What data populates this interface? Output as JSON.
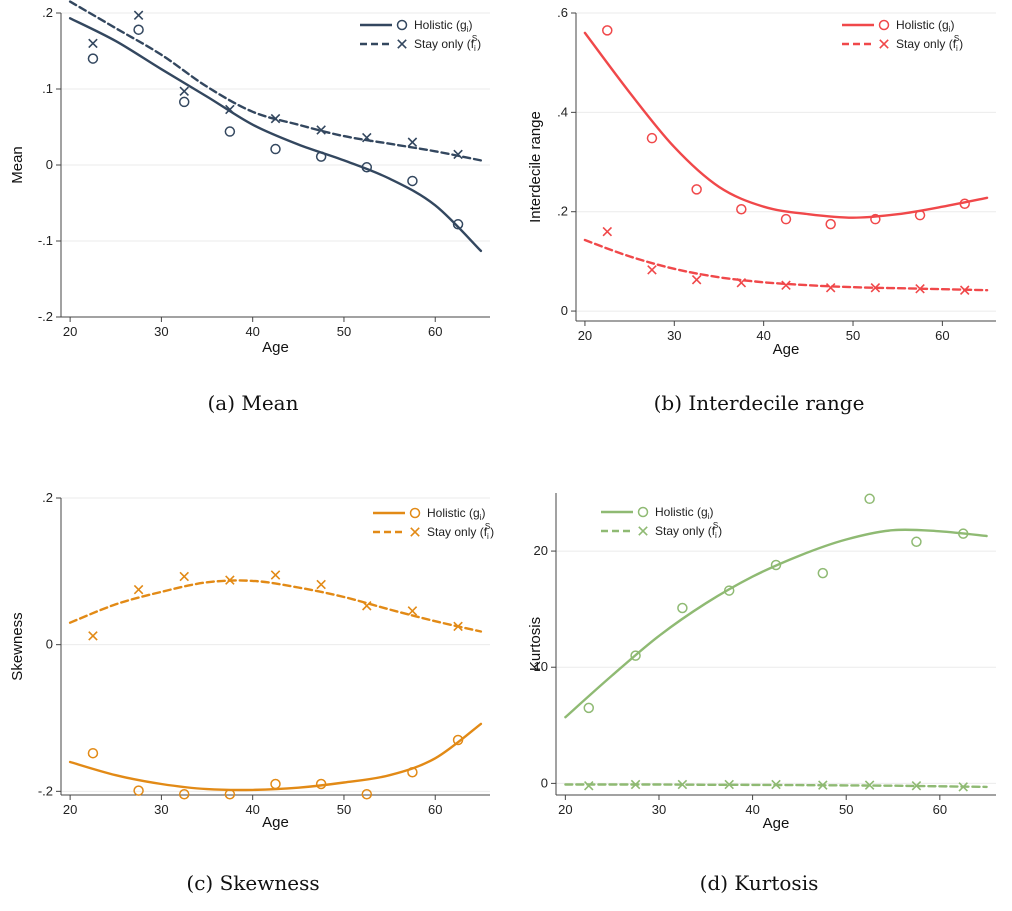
{
  "chart_data": [
    {
      "type": "line",
      "caption": "(a) Mean",
      "xlabel": "Age",
      "ylabel": "Mean",
      "xlim": [
        19,
        66
      ],
      "ylim": [
        -0.2,
        0.2
      ],
      "xticks": [
        20,
        30,
        40,
        50,
        60
      ],
      "yticks": [
        -0.2,
        -0.1,
        0,
        0.1,
        0.2
      ],
      "ytick_labels": [
        "-.2",
        "-.1",
        "0",
        ".1",
        ".2"
      ],
      "grid": true,
      "legend_position": "top-right",
      "color": "#33475f",
      "series": [
        {
          "name": "Holistic",
          "legend_main": "Holistic (g",
          "legend_sub": "i",
          "legend_sup": "",
          "legend_end": ")",
          "style": "solid",
          "marker": "circle",
          "points_x": [
            22.5,
            27.5,
            32.5,
            37.5,
            42.5,
            47.5,
            52.5,
            57.5,
            62.5
          ],
          "points_y": [
            0.14,
            0.178,
            0.083,
            0.044,
            0.021,
            0.011,
            -0.003,
            -0.021,
            -0.078
          ],
          "fit_x": [
            20,
            25,
            30,
            35,
            40,
            45,
            50,
            55,
            60,
            65
          ],
          "fit_y": [
            0.193,
            0.163,
            0.126,
            0.09,
            0.053,
            0.027,
            0.006,
            -0.018,
            -0.053,
            -0.113
          ]
        },
        {
          "name": "Stay only",
          "legend_main": "Stay only (f",
          "legend_sub": "i",
          "legend_sup": "S",
          "legend_end": ")",
          "style": "dashed",
          "marker": "x",
          "points_x": [
            22.5,
            27.5,
            32.5,
            37.5,
            42.5,
            47.5,
            52.5,
            57.5,
            62.5
          ],
          "points_y": [
            0.16,
            0.197,
            0.097,
            0.073,
            0.061,
            0.046,
            0.036,
            0.03,
            0.014
          ],
          "fit_x": [
            20,
            25,
            30,
            35,
            40,
            45,
            50,
            55,
            60,
            65
          ],
          "fit_y": [
            0.215,
            0.18,
            0.145,
            0.103,
            0.07,
            0.053,
            0.038,
            0.028,
            0.018,
            0.006
          ]
        }
      ]
    },
    {
      "type": "line",
      "caption": "(b) Interdecile range",
      "xlabel": "Age",
      "ylabel": "Interdecile range",
      "xlim": [
        19,
        66
      ],
      "ylim": [
        -0.02,
        0.6
      ],
      "xticks": [
        20,
        30,
        40,
        50,
        60
      ],
      "yticks": [
        0,
        0.2,
        0.4,
        0.6
      ],
      "ytick_labels": [
        "0",
        ".2",
        ".4",
        ".6"
      ],
      "grid": true,
      "legend_position": "top-right",
      "color": "#f0484a",
      "series": [
        {
          "name": "Holistic",
          "legend_main": "Holistic (g",
          "legend_sub": "i",
          "legend_sup": "",
          "legend_end": ")",
          "style": "solid",
          "marker": "circle",
          "points_x": [
            22.5,
            27.5,
            32.5,
            37.5,
            42.5,
            47.5,
            52.5,
            57.5,
            62.5
          ],
          "points_y": [
            0.565,
            0.348,
            0.245,
            0.205,
            0.185,
            0.175,
            0.185,
            0.193,
            0.216
          ],
          "fit_x": [
            20,
            25,
            30,
            35,
            40,
            45,
            50,
            55,
            60,
            65
          ],
          "fit_y": [
            0.56,
            0.44,
            0.33,
            0.25,
            0.21,
            0.195,
            0.188,
            0.195,
            0.21,
            0.228
          ]
        },
        {
          "name": "Stay only",
          "legend_main": "Stay only (f",
          "legend_sub": "i",
          "legend_sup": "S",
          "legend_end": ")",
          "style": "dashed",
          "marker": "x",
          "points_x": [
            22.5,
            27.5,
            32.5,
            37.5,
            42.5,
            47.5,
            52.5,
            57.5,
            62.5
          ],
          "points_y": [
            0.16,
            0.083,
            0.063,
            0.057,
            0.052,
            0.047,
            0.047,
            0.045,
            0.042
          ],
          "fit_x": [
            20,
            25,
            30,
            35,
            40,
            45,
            50,
            55,
            60,
            65
          ],
          "fit_y": [
            0.143,
            0.11,
            0.085,
            0.068,
            0.058,
            0.052,
            0.048,
            0.046,
            0.044,
            0.042
          ]
        }
      ]
    },
    {
      "type": "line",
      "caption": "(c) Skewness",
      "xlabel": "Age",
      "ylabel": "Skewness",
      "xlim": [
        19,
        66
      ],
      "ylim": [
        -0.205,
        0.2
      ],
      "xticks": [
        20,
        30,
        40,
        50,
        60
      ],
      "yticks": [
        -0.2,
        0,
        0.2
      ],
      "ytick_labels": [
        "-.2",
        "0",
        ".2"
      ],
      "grid": true,
      "legend_position": "top-right",
      "color": "#e28a16",
      "series": [
        {
          "name": "Holistic",
          "legend_main": "Holistic (g",
          "legend_sub": "i",
          "legend_sup": "",
          "legend_end": ")",
          "style": "solid",
          "marker": "circle",
          "points_x": [
            22.5,
            27.5,
            32.5,
            37.5,
            42.5,
            47.5,
            52.5,
            57.5,
            62.5
          ],
          "points_y": [
            -0.148,
            -0.199,
            -0.204,
            -0.204,
            -0.19,
            -0.19,
            -0.204,
            -0.174,
            -0.13
          ],
          "fit_x": [
            20,
            25,
            30,
            35,
            40,
            45,
            50,
            55,
            60,
            65
          ],
          "fit_y": [
            -0.16,
            -0.178,
            -0.19,
            -0.197,
            -0.198,
            -0.195,
            -0.188,
            -0.178,
            -0.155,
            -0.108
          ]
        },
        {
          "name": "Stay only",
          "legend_main": "Stay only (f",
          "legend_sub": "i",
          "legend_sup": "S",
          "legend_end": ")",
          "style": "dashed",
          "marker": "x",
          "points_x": [
            22.5,
            27.5,
            32.5,
            37.5,
            42.5,
            47.5,
            52.5,
            57.5,
            62.5
          ],
          "points_y": [
            0.012,
            0.075,
            0.093,
            0.088,
            0.095,
            0.082,
            0.053,
            0.046,
            0.025
          ],
          "fit_x": [
            20,
            25,
            30,
            35,
            40,
            45,
            50,
            55,
            60,
            65
          ],
          "fit_y": [
            0.03,
            0.055,
            0.072,
            0.085,
            0.087,
            0.078,
            0.065,
            0.048,
            0.032,
            0.018
          ]
        }
      ]
    },
    {
      "type": "line",
      "caption": "(d) Kurtosis",
      "xlabel": "Age",
      "ylabel": "Kurtosis",
      "xlim": [
        19,
        66
      ],
      "ylim": [
        -1,
        25
      ],
      "xticks": [
        20,
        30,
        40,
        50,
        60
      ],
      "yticks": [
        0,
        10,
        20
      ],
      "ytick_labels": [
        "0",
        "10",
        "20"
      ],
      "grid": true,
      "legend_position": "top-left",
      "color": "#8fba73",
      "series": [
        {
          "name": "Holistic",
          "legend_main": "Holistic (g",
          "legend_sub": "i",
          "legend_sup": "",
          "legend_end": ")",
          "style": "solid",
          "marker": "circle",
          "points_x": [
            22.5,
            27.5,
            32.5,
            37.5,
            42.5,
            47.5,
            52.5,
            57.5,
            62.5
          ],
          "points_y": [
            6.5,
            11.0,
            15.1,
            16.6,
            18.8,
            18.1,
            24.5,
            20.8,
            21.5
          ],
          "fit_x": [
            20,
            25,
            30,
            35,
            40,
            45,
            50,
            55,
            60,
            65
          ],
          "fit_y": [
            5.7,
            9.3,
            12.7,
            15.5,
            17.8,
            19.6,
            21.0,
            21.8,
            21.7,
            21.3
          ]
        },
        {
          "name": "Stay only",
          "legend_main": "Stay only (f",
          "legend_sub": "i",
          "legend_sup": "S",
          "legend_end": ")",
          "style": "dashed",
          "marker": "x",
          "points_x": [
            22.5,
            27.5,
            32.5,
            37.5,
            42.5,
            47.5,
            52.5,
            57.5,
            62.5
          ],
          "points_y": [
            -0.2,
            -0.1,
            -0.1,
            -0.1,
            -0.1,
            -0.15,
            -0.15,
            -0.2,
            -0.3
          ],
          "fit_x": [
            20,
            25,
            30,
            35,
            40,
            45,
            50,
            55,
            60,
            65
          ],
          "fit_y": [
            -0.1,
            -0.1,
            -0.1,
            -0.12,
            -0.13,
            -0.15,
            -0.17,
            -0.2,
            -0.25,
            -0.3
          ]
        }
      ]
    }
  ]
}
